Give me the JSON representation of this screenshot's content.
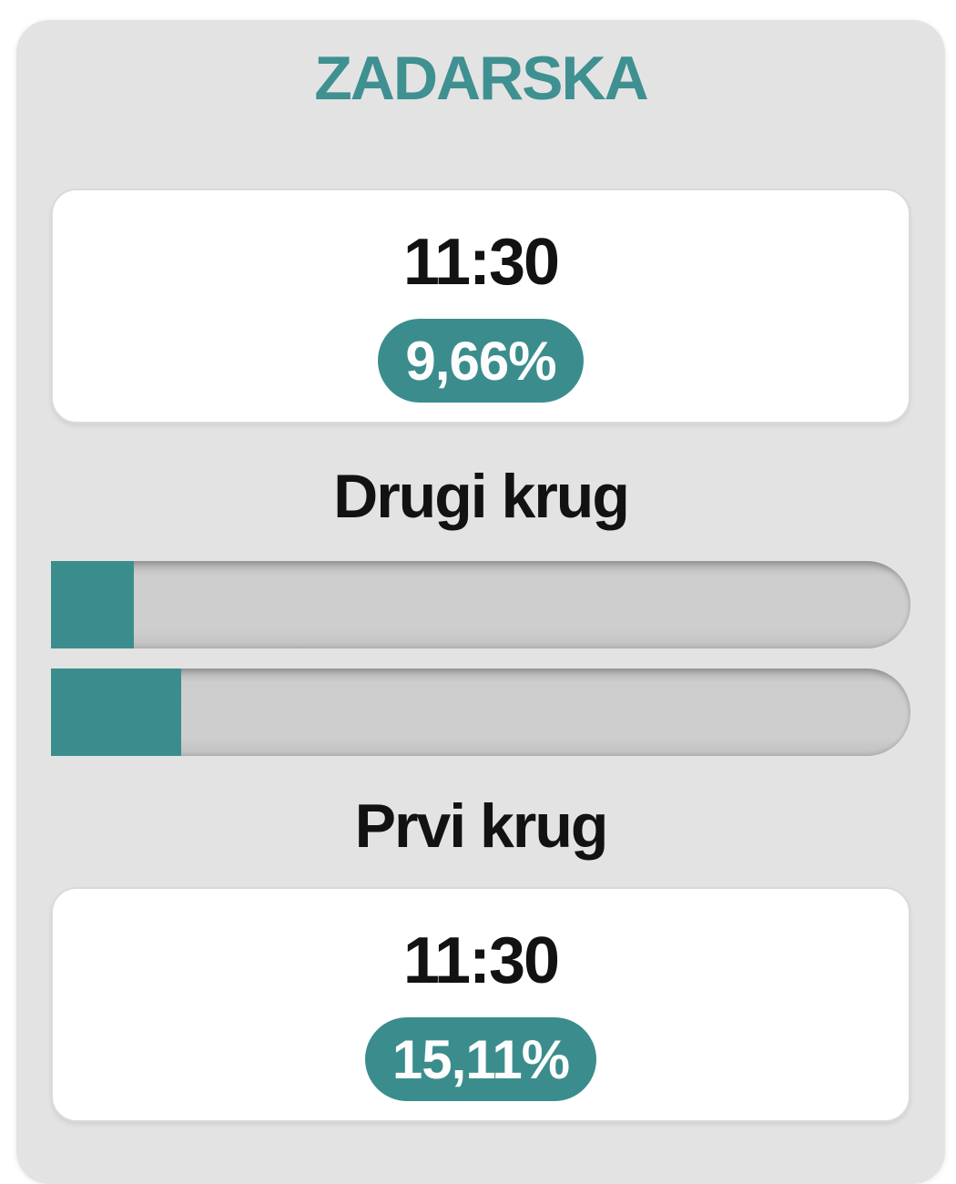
{
  "county": {
    "title": "ZADARSKA",
    "rounds": [
      {
        "id": "drugi-krug",
        "label": "Drugi krug",
        "time": "11:30",
        "turnout": "9,66%",
        "percent": 9.66
      },
      {
        "id": "prvi-krug",
        "label": "Prvi krug",
        "time": "11:30",
        "turnout": "15,11%",
        "percent": 15.11
      }
    ]
  },
  "colors": {
    "accent_teal": "#3B8D8D",
    "title_teal": "#3F9091",
    "card_background": "#E3E3E3",
    "track_gray": "#CDCDCD",
    "text_dark": "#121212",
    "badge_text": "#FDFDFD"
  },
  "chart_data": {
    "type": "bar",
    "title": "ZADARSKA",
    "categories": [
      "Drugi krug",
      "Prvi krug"
    ],
    "values": [
      9.66,
      15.11
    ],
    "unit": "%",
    "time_labels": [
      "11:30",
      "11:30"
    ],
    "xlim": [
      0,
      100
    ],
    "orientation": "horizontal"
  }
}
